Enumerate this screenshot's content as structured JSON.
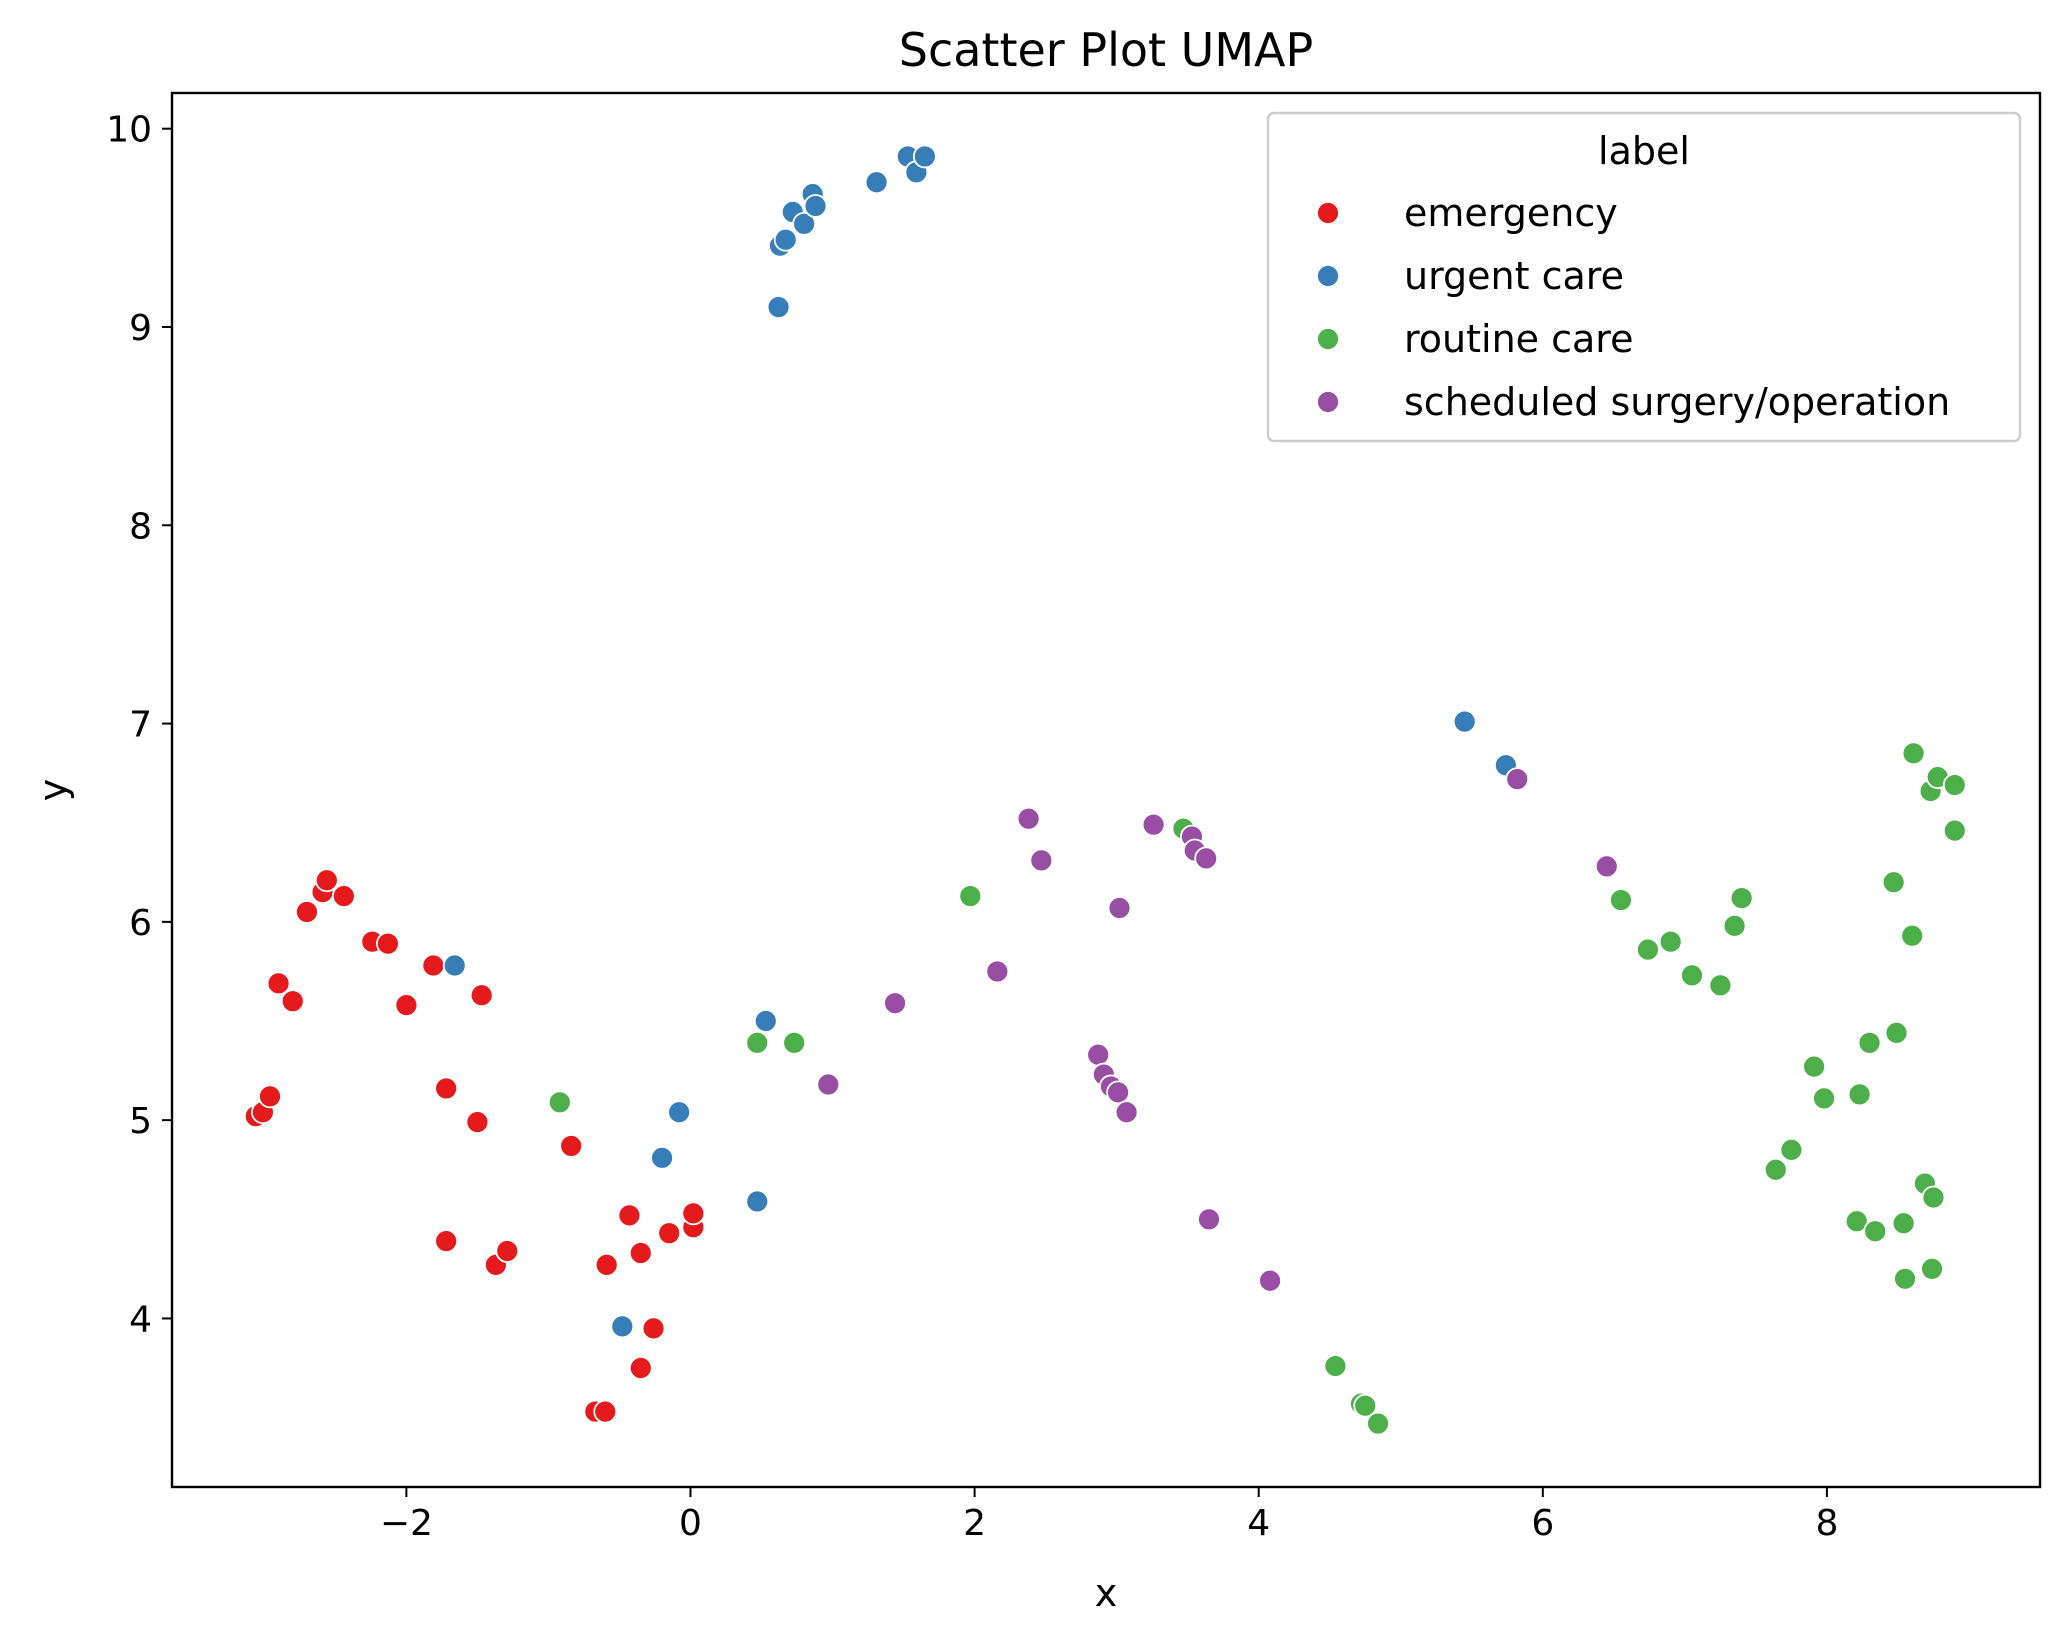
{
  "chart_data": {
    "type": "scatter",
    "title": "Scatter Plot UMAP",
    "xlabel": "x",
    "ylabel": "y",
    "xlim": [
      -3.65,
      9.5
    ],
    "ylim": [
      3.15,
      10.18
    ],
    "xticks": [
      -2,
      0,
      2,
      4,
      6,
      8
    ],
    "xtick_labels": [
      "−2",
      "0",
      "2",
      "4",
      "6",
      "8"
    ],
    "yticks": [
      4,
      5,
      6,
      7,
      8,
      9,
      10
    ],
    "ytick_labels": [
      "4",
      "5",
      "6",
      "7",
      "8",
      "9",
      "10"
    ],
    "grid": false,
    "legend": {
      "title": "label",
      "position": "top-right"
    },
    "series": [
      {
        "name": "emergency",
        "color": "#e41a1c",
        "points": [
          [
            -3.06,
            5.02
          ],
          [
            -3.01,
            5.04
          ],
          [
            -2.96,
            5.12
          ],
          [
            -2.9,
            5.69
          ],
          [
            -2.8,
            5.6
          ],
          [
            -2.7,
            6.05
          ],
          [
            -2.59,
            6.15
          ],
          [
            -2.56,
            6.21
          ],
          [
            -2.44,
            6.13
          ],
          [
            -2.24,
            5.9
          ],
          [
            -2.13,
            5.89
          ],
          [
            -2.0,
            5.58
          ],
          [
            -1.81,
            5.78
          ],
          [
            -1.72,
            5.16
          ],
          [
            -1.72,
            4.39
          ],
          [
            -1.5,
            4.99
          ],
          [
            -1.47,
            5.63
          ],
          [
            -1.37,
            4.27
          ],
          [
            -1.29,
            4.34
          ],
          [
            -0.84,
            4.87
          ],
          [
            -0.67,
            3.53
          ],
          [
            -0.6,
            3.53
          ],
          [
            -0.59,
            4.27
          ],
          [
            -0.43,
            4.52
          ],
          [
            -0.35,
            4.33
          ],
          [
            -0.35,
            3.75
          ],
          [
            -0.26,
            3.95
          ],
          [
            -0.15,
            4.43
          ],
          [
            0.02,
            4.46
          ],
          [
            0.02,
            4.53
          ]
        ]
      },
      {
        "name": "urgent care",
        "color": "#377eb8",
        "points": [
          [
            -1.66,
            5.78
          ],
          [
            -0.48,
            3.96
          ],
          [
            -0.2,
            4.81
          ],
          [
            -0.08,
            5.04
          ],
          [
            0.47,
            4.59
          ],
          [
            0.53,
            5.5
          ],
          [
            0.62,
            9.1
          ],
          [
            0.63,
            9.41
          ],
          [
            0.67,
            9.44
          ],
          [
            0.72,
            9.58
          ],
          [
            0.8,
            9.52
          ],
          [
            0.86,
            9.67
          ],
          [
            0.88,
            9.61
          ],
          [
            1.31,
            9.73
          ],
          [
            1.53,
            9.86
          ],
          [
            1.59,
            9.78
          ],
          [
            1.65,
            9.86
          ],
          [
            5.45,
            7.01
          ],
          [
            5.74,
            6.79
          ]
        ]
      },
      {
        "name": "routine care",
        "color": "#4daf4a",
        "points": [
          [
            -0.92,
            5.09
          ],
          [
            0.47,
            5.39
          ],
          [
            0.73,
            5.39
          ],
          [
            1.97,
            6.13
          ],
          [
            3.47,
            6.47
          ],
          [
            4.54,
            3.76
          ],
          [
            4.72,
            3.57
          ],
          [
            4.75,
            3.56
          ],
          [
            4.84,
            3.47
          ],
          [
            6.55,
            6.11
          ],
          [
            6.74,
            5.86
          ],
          [
            6.9,
            5.9
          ],
          [
            7.05,
            5.73
          ],
          [
            7.25,
            5.68
          ],
          [
            7.35,
            5.98
          ],
          [
            7.4,
            6.12
          ],
          [
            7.64,
            4.75
          ],
          [
            7.75,
            4.85
          ],
          [
            7.91,
            5.27
          ],
          [
            7.98,
            5.11
          ],
          [
            8.21,
            4.49
          ],
          [
            8.23,
            5.13
          ],
          [
            8.3,
            5.39
          ],
          [
            8.34,
            4.44
          ],
          [
            8.47,
            6.2
          ],
          [
            8.49,
            5.44
          ],
          [
            8.54,
            4.48
          ],
          [
            8.55,
            4.2
          ],
          [
            8.6,
            5.93
          ],
          [
            8.61,
            6.85
          ],
          [
            8.69,
            4.68
          ],
          [
            8.73,
            6.66
          ],
          [
            8.74,
            4.25
          ],
          [
            8.75,
            4.61
          ],
          [
            8.78,
            6.73
          ],
          [
            8.9,
            6.69
          ],
          [
            8.9,
            6.46
          ]
        ]
      },
      {
        "name": "scheduled surgery/operation",
        "color": "#984ea3",
        "points": [
          [
            0.97,
            5.18
          ],
          [
            1.44,
            5.59
          ],
          [
            2.16,
            5.75
          ],
          [
            2.38,
            6.52
          ],
          [
            2.47,
            6.31
          ],
          [
            2.87,
            5.33
          ],
          [
            2.91,
            5.23
          ],
          [
            2.96,
            5.17
          ],
          [
            3.01,
            5.14
          ],
          [
            3.02,
            6.07
          ],
          [
            3.07,
            5.04
          ],
          [
            3.26,
            6.49
          ],
          [
            3.53,
            6.43
          ],
          [
            3.55,
            6.36
          ],
          [
            3.63,
            6.32
          ],
          [
            3.65,
            4.5
          ],
          [
            4.08,
            4.19
          ],
          [
            5.82,
            6.72
          ],
          [
            6.45,
            6.28
          ]
        ]
      }
    ]
  }
}
